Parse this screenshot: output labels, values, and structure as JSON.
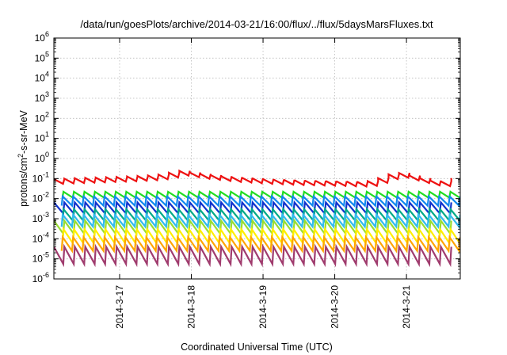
{
  "chart_data": {
    "type": "line",
    "title": "/data/run/goesPlots/archive/2014-03-21/16:00/flux/../flux/5daysMarsFluxes.txt",
    "xlabel": "Coordinated Universal Time (UTC)",
    "ylabel": "protons/cm2-s-sr-MeV",
    "ylabel_parts": {
      "before": "protons/cm",
      "sup": "2",
      "after": "-s-sr-MeV"
    },
    "y_scale": "log",
    "ylim": [
      1e-06,
      1000000.0
    ],
    "y_ticks": [
      {
        "base": "10",
        "exp": "-6",
        "value": 1e-06
      },
      {
        "base": "10",
        "exp": "-5",
        "value": 1e-05
      },
      {
        "base": "10",
        "exp": "-4",
        "value": 0.0001
      },
      {
        "base": "10",
        "exp": "-3",
        "value": 0.001
      },
      {
        "base": "10",
        "exp": "-2",
        "value": 0.01
      },
      {
        "base": "10",
        "exp": "-1",
        "value": 0.1
      },
      {
        "base": "10",
        "exp": "0",
        "value": 1
      },
      {
        "base": "10",
        "exp": "1",
        "value": 10
      },
      {
        "base": "10",
        "exp": "2",
        "value": 100
      },
      {
        "base": "10",
        "exp": "3",
        "value": 1000
      },
      {
        "base": "10",
        "exp": "4",
        "value": 10000
      },
      {
        "base": "10",
        "exp": "5",
        "value": 100000
      },
      {
        "base": "10",
        "exp": "6",
        "value": 1000000
      }
    ],
    "xlim": [
      "2014-03-16T02:00",
      "2014-03-21T18:00"
    ],
    "x_ticks": [
      {
        "label": "2014-3-17",
        "value": "2014-03-17T00:00"
      },
      {
        "label": "2014-3-18",
        "value": "2014-03-18T00:00"
      },
      {
        "label": "2014-3-19",
        "value": "2014-03-19T00:00"
      },
      {
        "label": "2014-3-20",
        "value": "2014-03-20T00:00"
      },
      {
        "label": "2014-3-21",
        "value": "2014-03-21T00:00"
      }
    ],
    "grid": true,
    "legend": "none",
    "sawtooth_period_hours": 3.5,
    "series": [
      {
        "color": "#ee1111",
        "values": [
          [
            "2014-03-16T02:00",
            0.07
          ],
          [
            "2014-03-16T12:00",
            0.08
          ],
          [
            "2014-03-17T00:00",
            0.09
          ],
          [
            "2014-03-17T12:00",
            0.11
          ],
          [
            "2014-03-17T20:00",
            0.18
          ],
          [
            "2014-03-18T02:00",
            0.13
          ],
          [
            "2014-03-18T12:00",
            0.09
          ],
          [
            "2014-03-19T00:00",
            0.07
          ],
          [
            "2014-03-19T12:00",
            0.06
          ],
          [
            "2014-03-20T00:00",
            0.055
          ],
          [
            "2014-03-20T10:00",
            0.05
          ],
          [
            "2014-03-20T16:00",
            0.09
          ],
          [
            "2014-03-20T20:00",
            0.16
          ],
          [
            "2014-03-21T04:00",
            0.08
          ],
          [
            "2014-03-21T10:00",
            0.05
          ],
          [
            "2014-03-21T14:00",
            0.06
          ],
          [
            "2014-03-21T18:00",
            0.17
          ]
        ]
      },
      {
        "color": "#22dd22",
        "range": [
          0.011,
          0.022
        ]
      },
      {
        "color": "#1188ee",
        "range": [
          0.0045,
          0.013
        ]
      },
      {
        "color": "#1133cc",
        "range": [
          0.0018,
          0.0065
        ]
      },
      {
        "color": "#00aa88",
        "range": [
          0.0008,
          0.003
        ]
      },
      {
        "color": "#33bbee",
        "range": [
          0.0004,
          0.0016
        ]
      },
      {
        "color": "#99dd33",
        "range": [
          0.00018,
          0.0008
        ]
      },
      {
        "color": "#ffee00",
        "range": [
          6e-05,
          0.0003
        ]
      },
      {
        "color": "#ffa500",
        "range": [
          2.5e-05,
          0.00012
        ]
      },
      {
        "color": "#a03c6e",
        "range": [
          5.5e-06,
          4e-05
        ]
      }
    ]
  }
}
